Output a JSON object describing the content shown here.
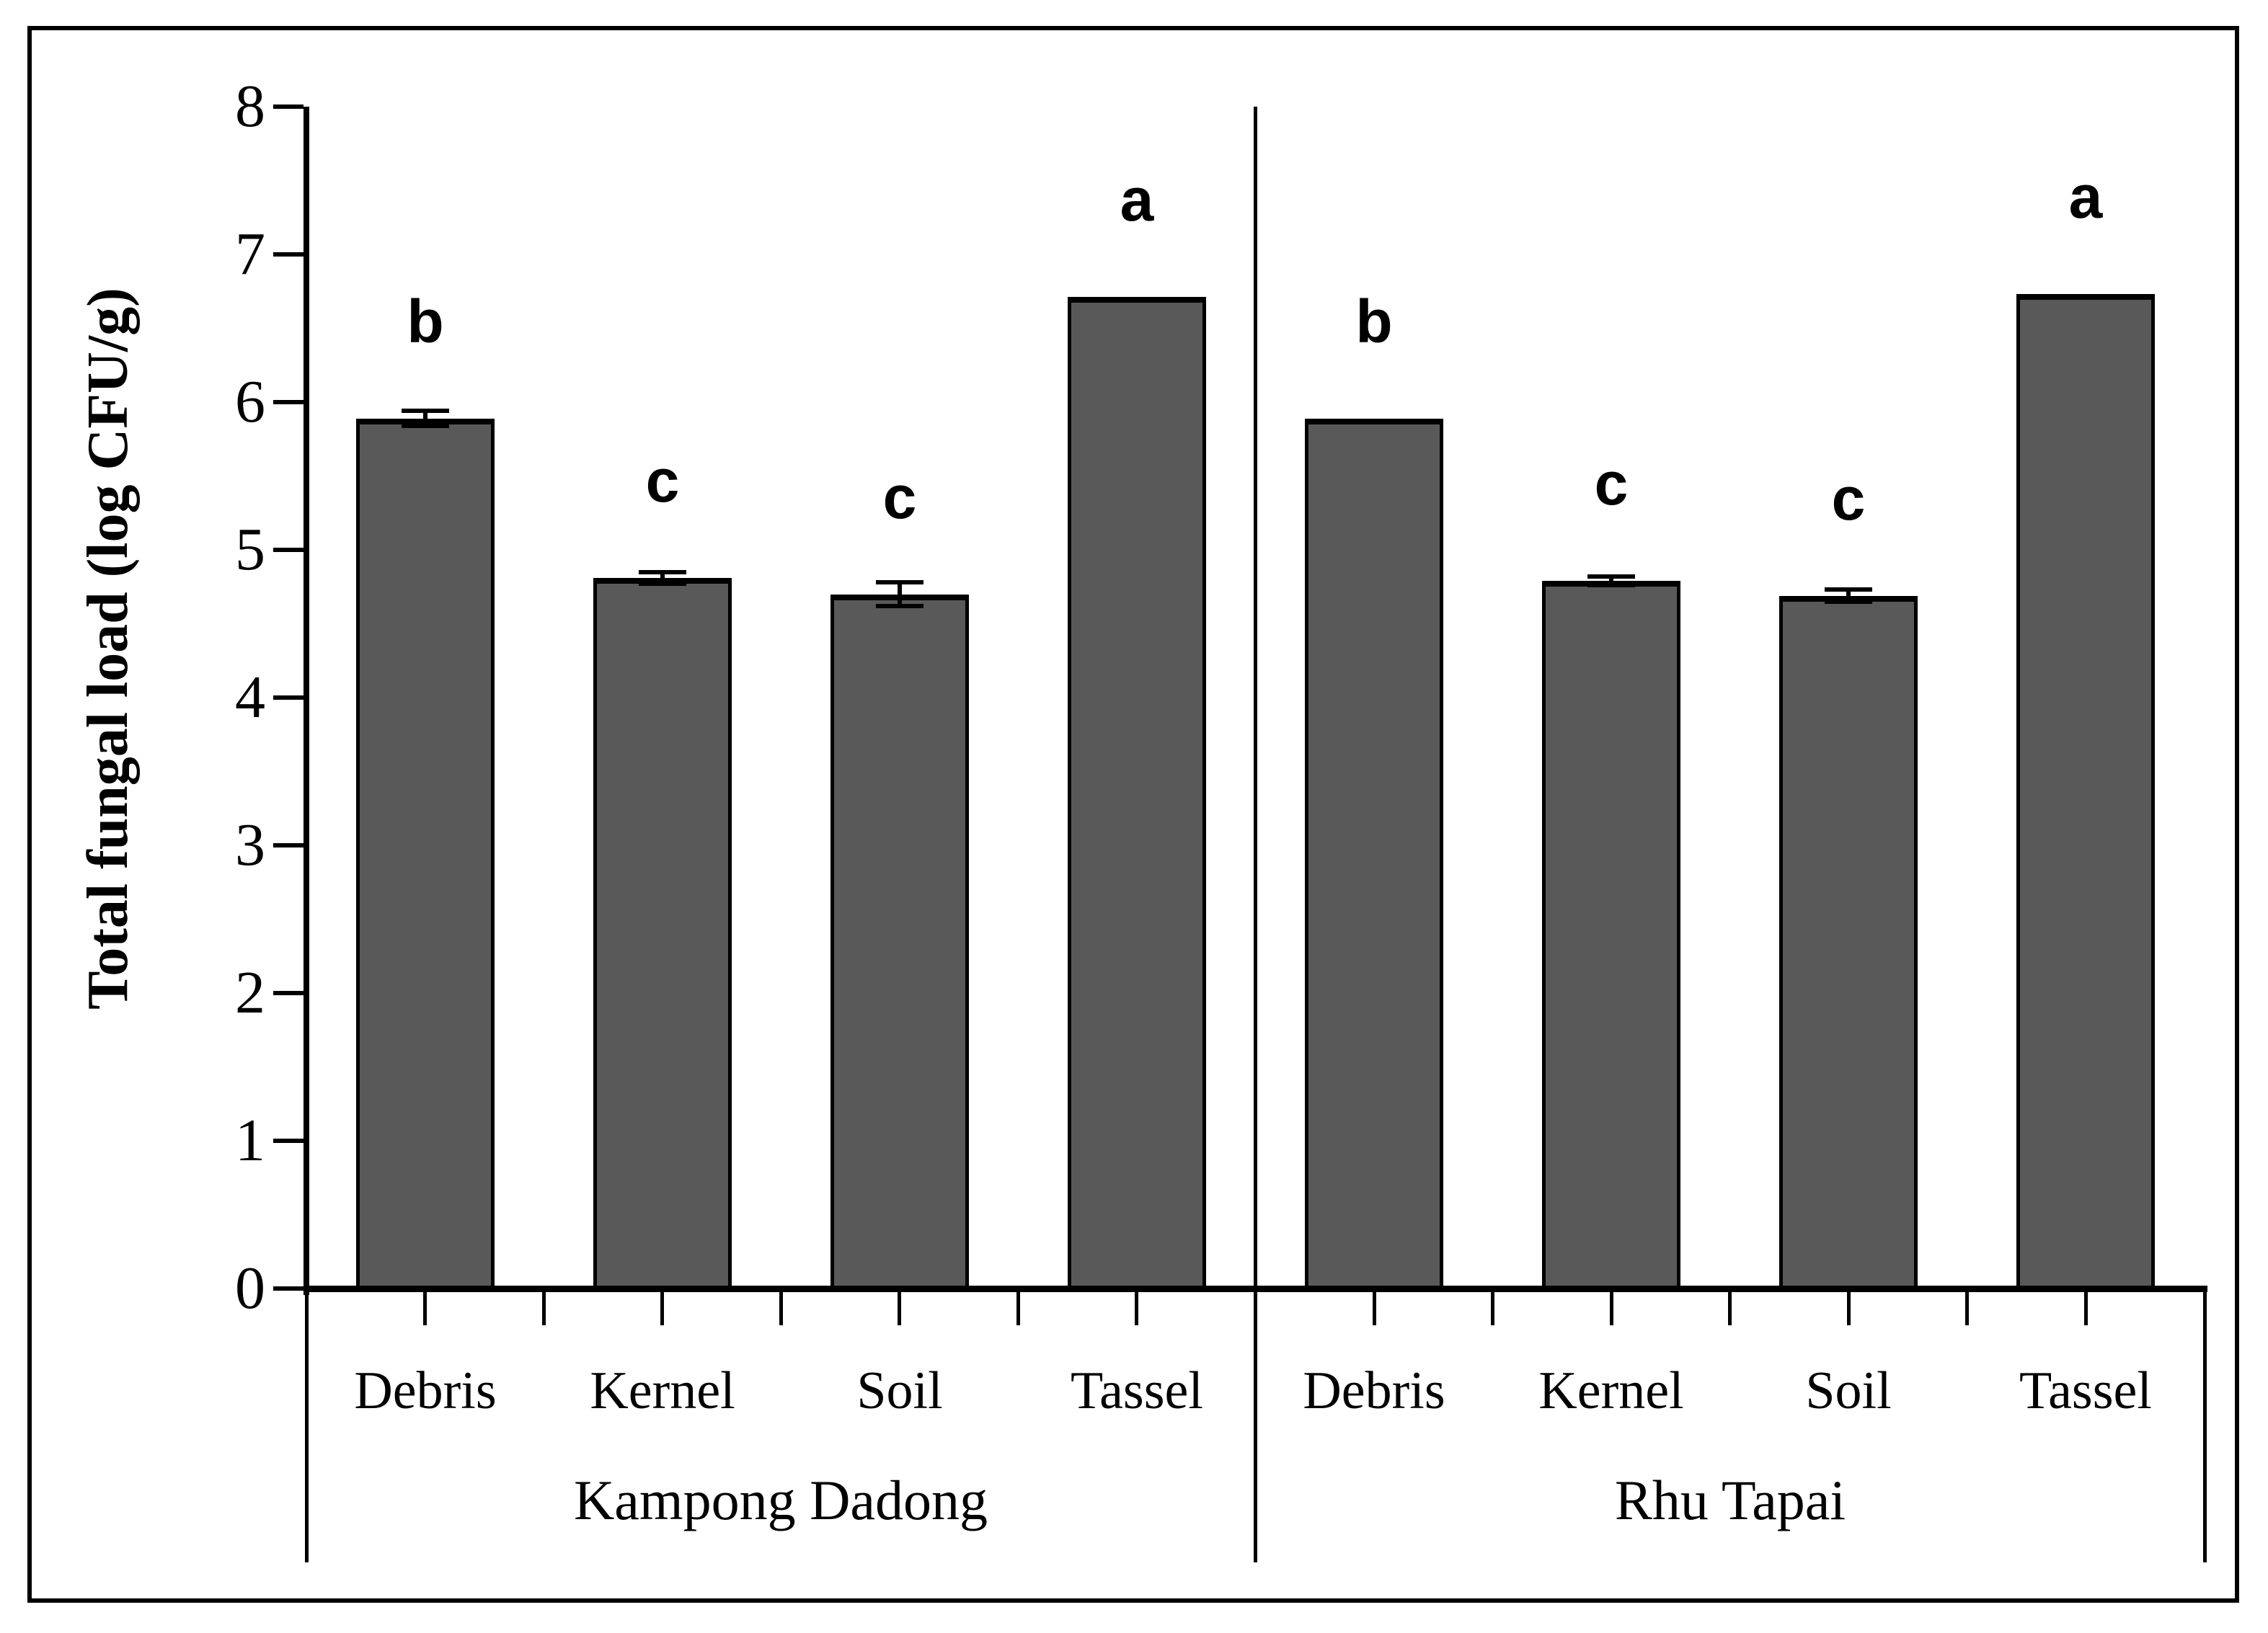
{
  "figure": {
    "background": "#ffffff",
    "border_color": "#000000"
  },
  "chart_data": {
    "type": "bar",
    "title": "",
    "ylabel": "Total fungal load (log CFU/g)",
    "xlabel": "",
    "ylim": [
      0,
      8
    ],
    "y_tick_labels": [
      "0",
      "1",
      "2",
      "3",
      "4",
      "5",
      "6",
      "7",
      "8"
    ],
    "grid": false,
    "legend": null,
    "bar_fill": "#595959",
    "bar_border": "#000000",
    "axis_color": "#000000",
    "error_bar_color": "#000000",
    "groups": [
      {
        "label": "Kampong Dadong",
        "categories": [
          "Debris",
          "Kernel",
          "Soil",
          "Tassel"
        ],
        "values": [
          5.89,
          4.81,
          4.7,
          6.71
        ],
        "errors": [
          0.05,
          0.04,
          0.08,
          0
        ],
        "sig_letters": [
          "b",
          "c",
          "c",
          "a"
        ]
      },
      {
        "label": "Rhu Tapai",
        "categories": [
          "Debris",
          "Kernel",
          "Soil",
          "Tassel"
        ],
        "values": [
          5.89,
          4.79,
          4.69,
          6.73
        ],
        "errors": [
          0,
          0.03,
          0.04,
          0
        ],
        "sig_letters": [
          "b",
          "c",
          "c",
          "a"
        ]
      }
    ]
  }
}
